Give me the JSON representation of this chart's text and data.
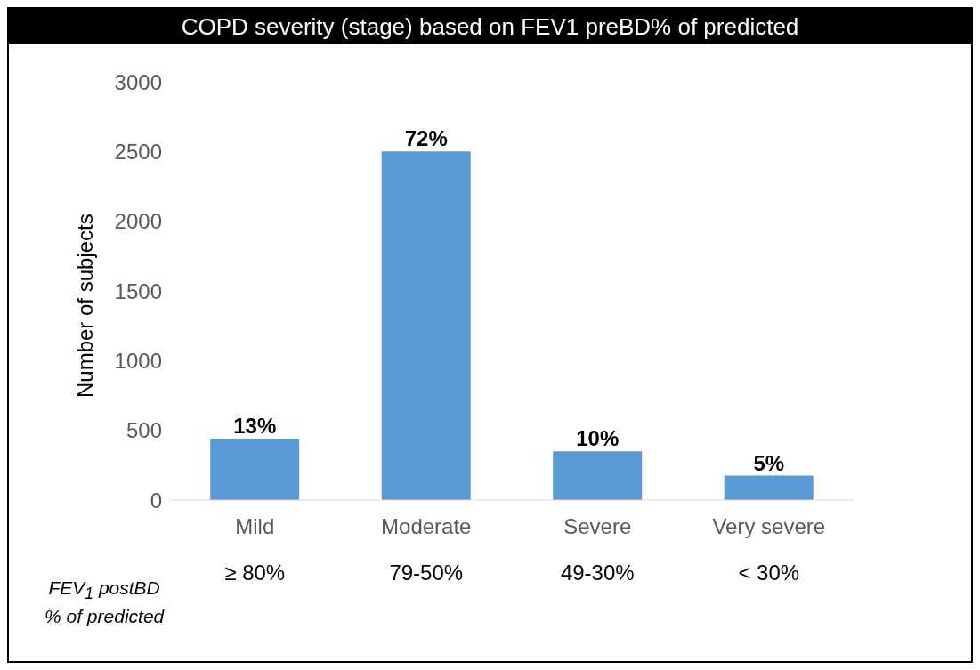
{
  "chart_data": {
    "type": "bar",
    "title": "COPD severity (stage) based on FEV1 preBD% of predicted",
    "ylabel": "Number of subjects",
    "categories": [
      "Mild",
      "Moderate",
      "Severe",
      "Very severe"
    ],
    "values": [
      440,
      2500,
      350,
      175
    ],
    "color": "#5b9bd5",
    "ylim": [
      0,
      3000
    ],
    "yticks": [
      0,
      500,
      1000,
      1500,
      2000,
      2500,
      3000
    ],
    "grid": false,
    "legend": false,
    "annotations": [
      "FEV$_{1}$ postBD\n% of predicted",
      "≥ 80%",
      "79-50%",
      "49-30%",
      "< 30%",
      {
        "text": "13%",
        "x": "Mild",
        "y": 440
      },
      {
        "text": "72%",
        "x": "Moderate",
        "y": 2500
      },
      {
        "text": "10%",
        "x": "Severe",
        "y": 350
      },
      {
        "text": "5%",
        "x": "Very severe",
        "y": 175
      }
    ]
  }
}
